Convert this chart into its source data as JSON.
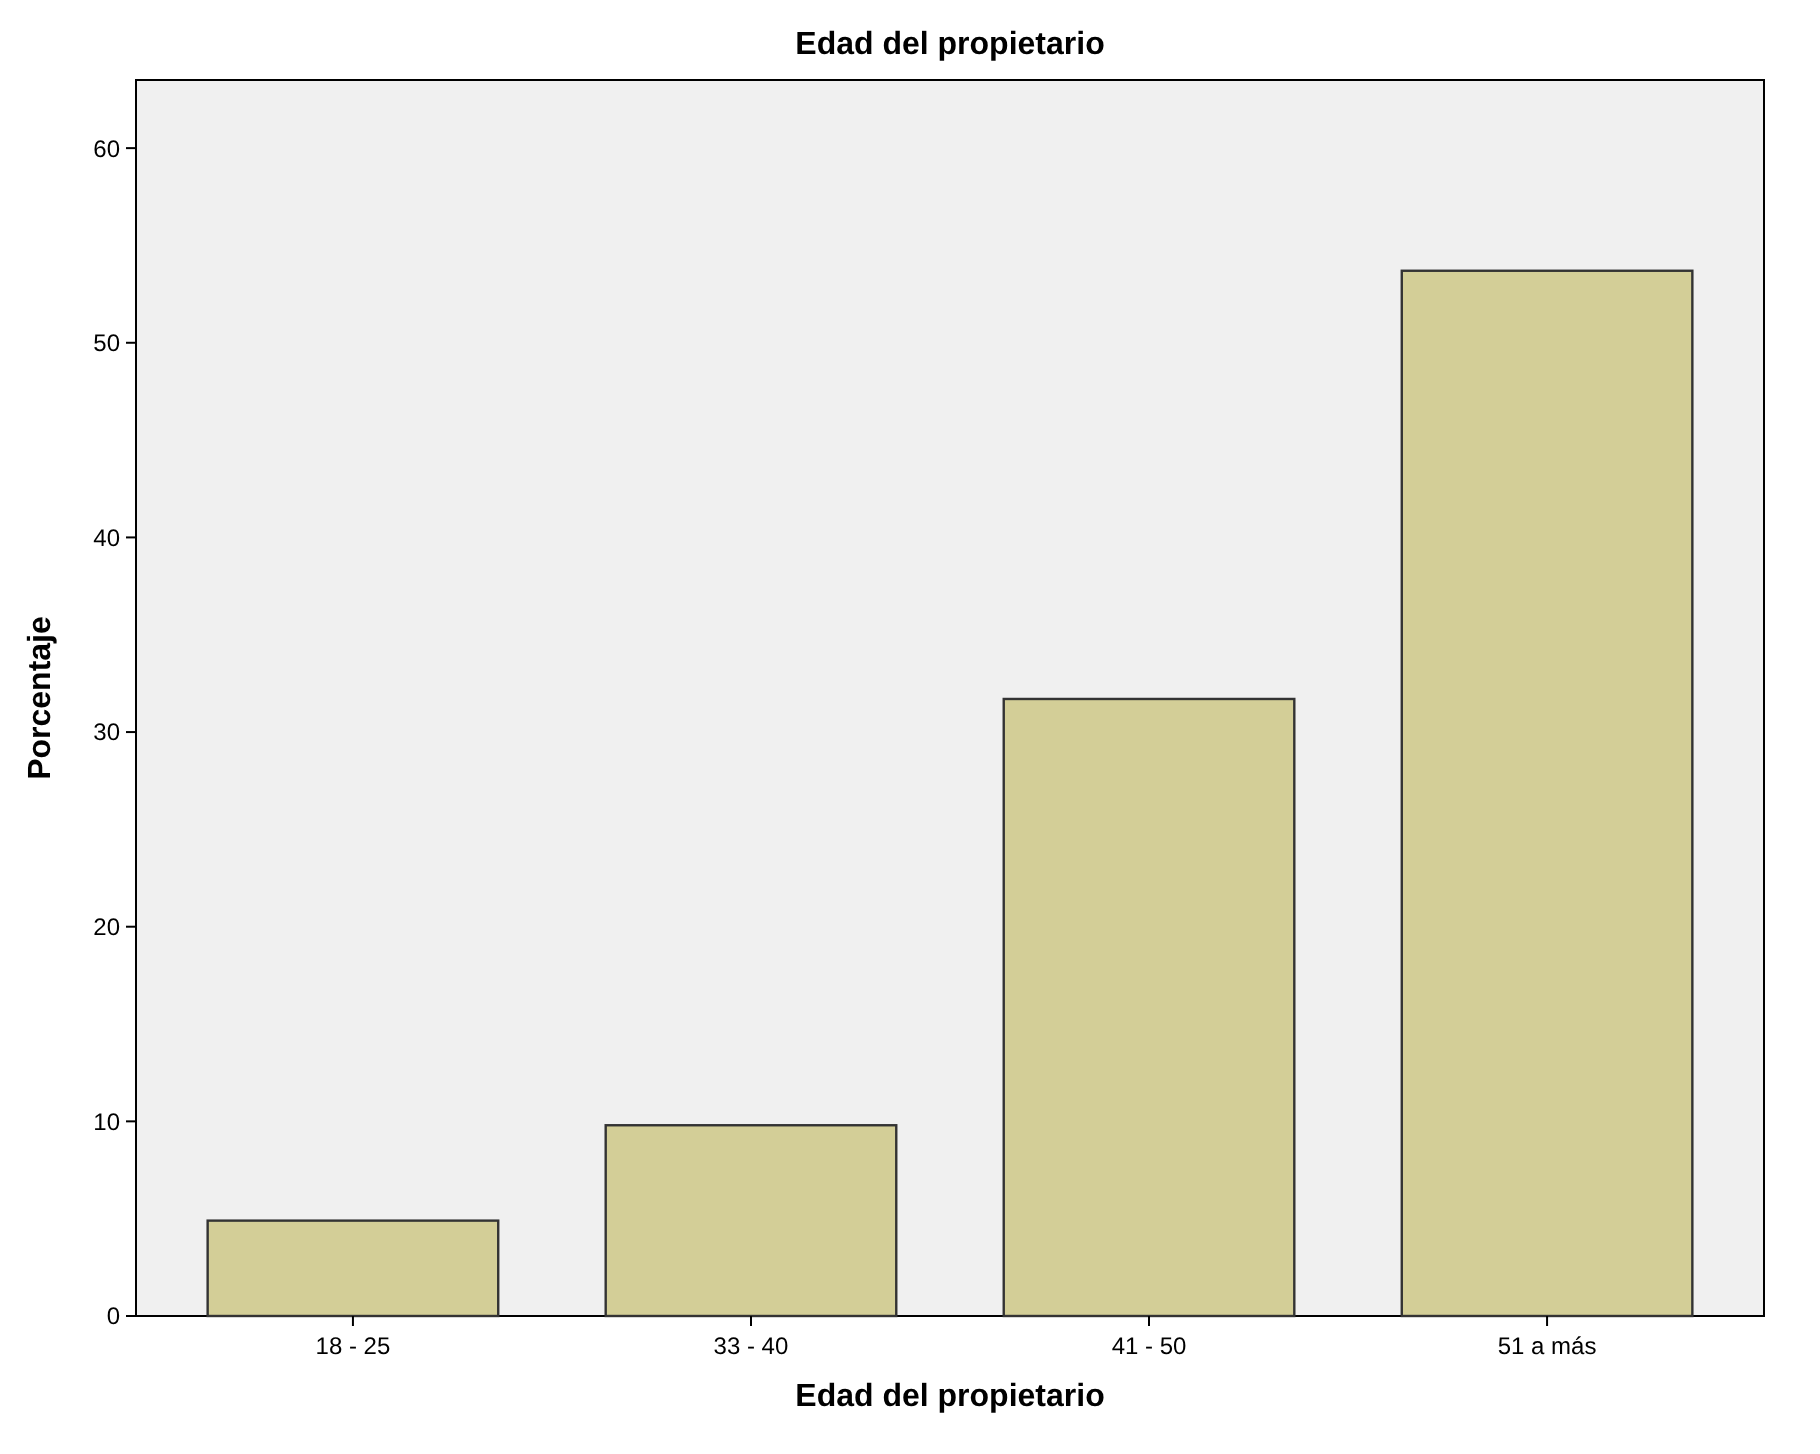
{
  "chart_data": {
    "type": "bar",
    "title": "Edad del propietario",
    "xlabel": "Edad del propietario",
    "ylabel": "Porcentaje",
    "categories": [
      "18 - 25",
      "33 - 40",
      "41 - 50",
      "51 a más"
    ],
    "values": [
      4.9,
      9.8,
      31.7,
      53.7
    ],
    "color": "#d3ce97",
    "ylim": [
      0,
      63.5
    ],
    "yticks": [
      0,
      10,
      20,
      30,
      40,
      50,
      60
    ]
  }
}
